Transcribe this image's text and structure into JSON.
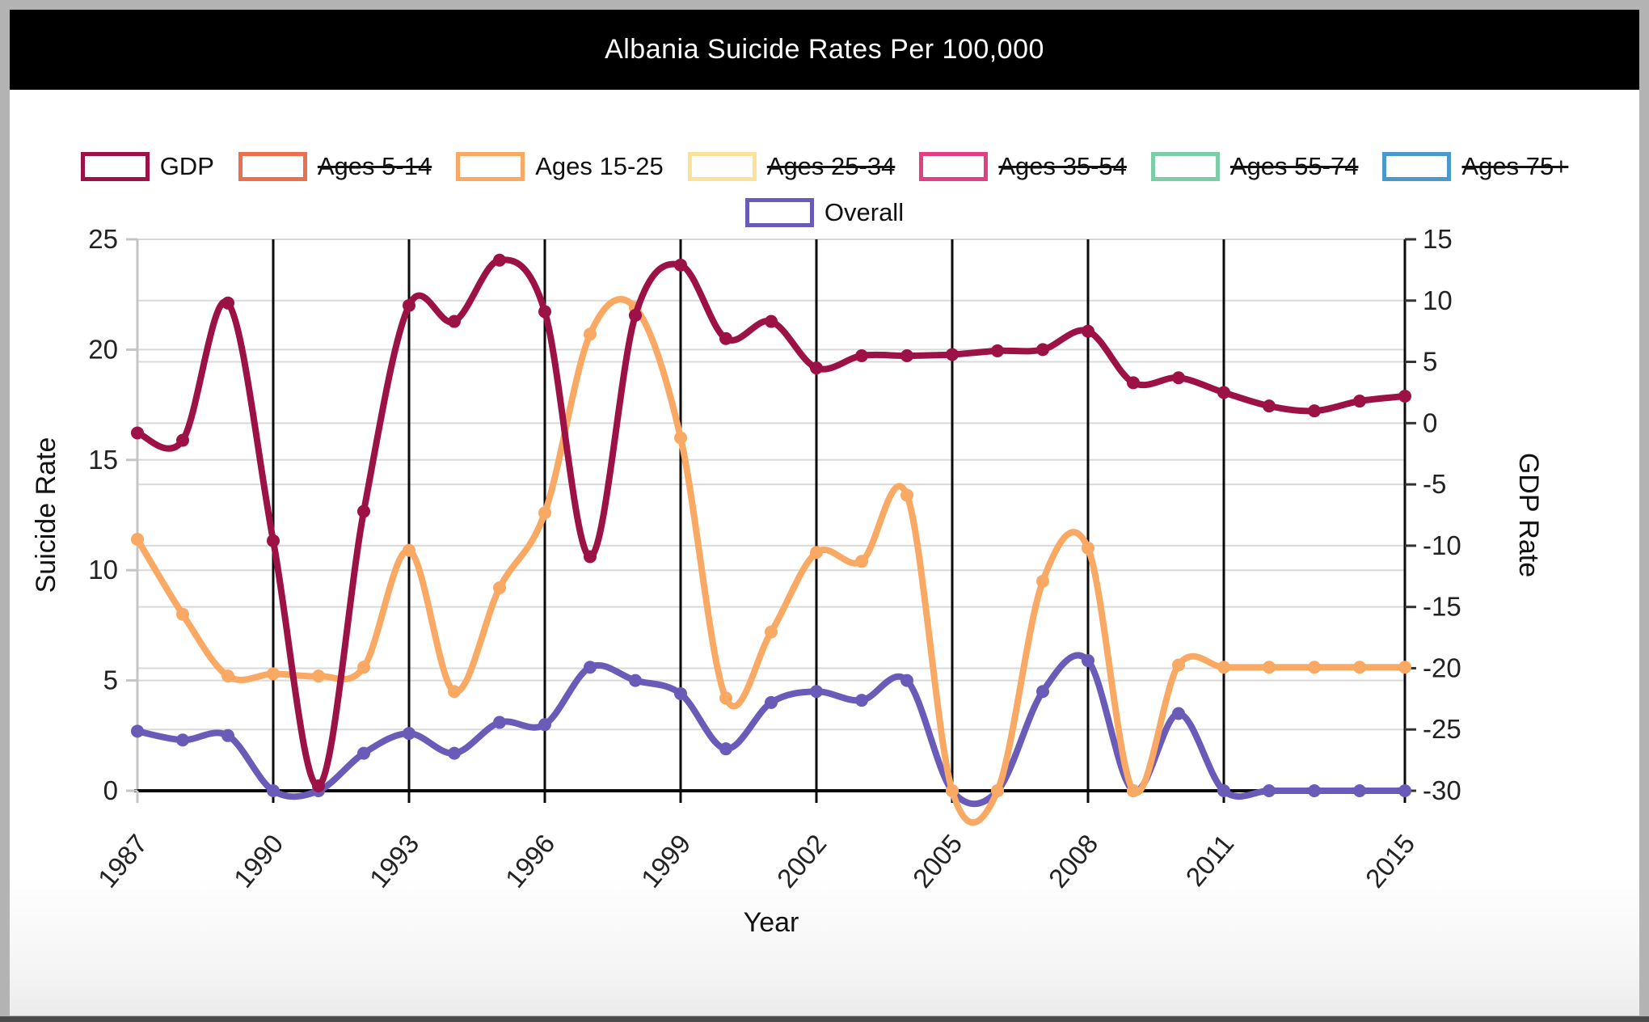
{
  "window": {
    "title": "Albania Suicide Rates Per 100,000"
  },
  "legend": {
    "rows": [
      [
        {
          "label": "GDP",
          "color": "#9C1146",
          "struck": false
        },
        {
          "label": "Ages 5-14",
          "color": "#EB6E4F",
          "struck": true
        },
        {
          "label": "Ages 15-25",
          "color": "#F9A963",
          "struck": false
        },
        {
          "label": "Ages 25-34",
          "color": "#FBE29B",
          "struck": true
        },
        {
          "label": "Ages 35-54",
          "color": "#E23E81",
          "struck": true
        },
        {
          "label": "Ages 55-74",
          "color": "#7ECDA8",
          "struck": true
        },
        {
          "label": "Ages 75+",
          "color": "#4B98CB",
          "struck": true
        }
      ],
      [
        {
          "label": "Overall",
          "color": "#6A5BB8",
          "struck": false
        }
      ]
    ]
  },
  "chart_data": {
    "type": "line",
    "title": "Albania Suicide Rates Per 100,000",
    "xlabel": "Year",
    "x": [
      1987,
      1988,
      1989,
      1990,
      1991,
      1992,
      1993,
      1994,
      1995,
      1996,
      1997,
      1998,
      1999,
      2000,
      2001,
      2002,
      2003,
      2004,
      2005,
      2006,
      2007,
      2008,
      2009,
      2010,
      2011,
      2012,
      2013,
      2014,
      2015
    ],
    "x_ticks": [
      1987,
      1990,
      1993,
      1996,
      1999,
      2002,
      2005,
      2008,
      2011,
      2015
    ],
    "left_axis": {
      "label": "Suicide Rate",
      "min": 0,
      "max": 25,
      "ticks": [
        0,
        5,
        10,
        15,
        20,
        25
      ]
    },
    "right_axis": {
      "label": "GDP Rate",
      "min": -30,
      "max": 15,
      "ticks": [
        -30,
        -25,
        -20,
        -15,
        -10,
        -5,
        0,
        5,
        10,
        15
      ]
    },
    "grid": {
      "horizontal": "light-gray on both axis tick sets",
      "vertical": "black at x ticks"
    },
    "legend_position": "top",
    "series": [
      {
        "name": "Overall",
        "axis": "left",
        "color": "#6A5BB8",
        "values": [
          2.7,
          2.3,
          2.5,
          0,
          0,
          1.7,
          2.6,
          1.7,
          3.1,
          3.0,
          5.6,
          5.0,
          4.4,
          1.9,
          4.0,
          4.5,
          4.1,
          5.0,
          0,
          0,
          4.5,
          5.9,
          0,
          3.5,
          0,
          0,
          0,
          0,
          0
        ]
      },
      {
        "name": "Ages 15-25",
        "axis": "left",
        "color": "#F9A963",
        "values": [
          11.4,
          8.0,
          5.2,
          5.3,
          5.2,
          5.6,
          10.9,
          4.5,
          9.2,
          12.6,
          20.7,
          21.9,
          16.0,
          4.2,
          7.2,
          10.8,
          10.4,
          13.4,
          0,
          0,
          9.5,
          11.0,
          0,
          5.7,
          5.6,
          5.6,
          5.6,
          5.6,
          5.6
        ]
      },
      {
        "name": "GDP",
        "axis": "right",
        "color": "#9C1146",
        "values": [
          -0.8,
          -1.4,
          9.8,
          -9.6,
          -29.6,
          -7.2,
          9.6,
          8.3,
          13.3,
          9.1,
          -10.9,
          8.8,
          12.9,
          6.9,
          8.3,
          4.5,
          5.5,
          5.5,
          5.6,
          5.9,
          6.0,
          7.5,
          3.3,
          3.7,
          2.5,
          1.4,
          1.0,
          1.8,
          2.2
        ]
      }
    ]
  },
  "colors": {
    "page_bg": "#ffffff",
    "frame_border": "#b3b3b3",
    "title_bar_bg": "#000000",
    "title_text": "#ffffff",
    "grid_light": "#d9d9d9",
    "grid_dark": "#0a0a0a",
    "axis_gray": "#c5c5c5",
    "tick_text": "#222222",
    "bottom_strip": "#4b4b4b"
  }
}
